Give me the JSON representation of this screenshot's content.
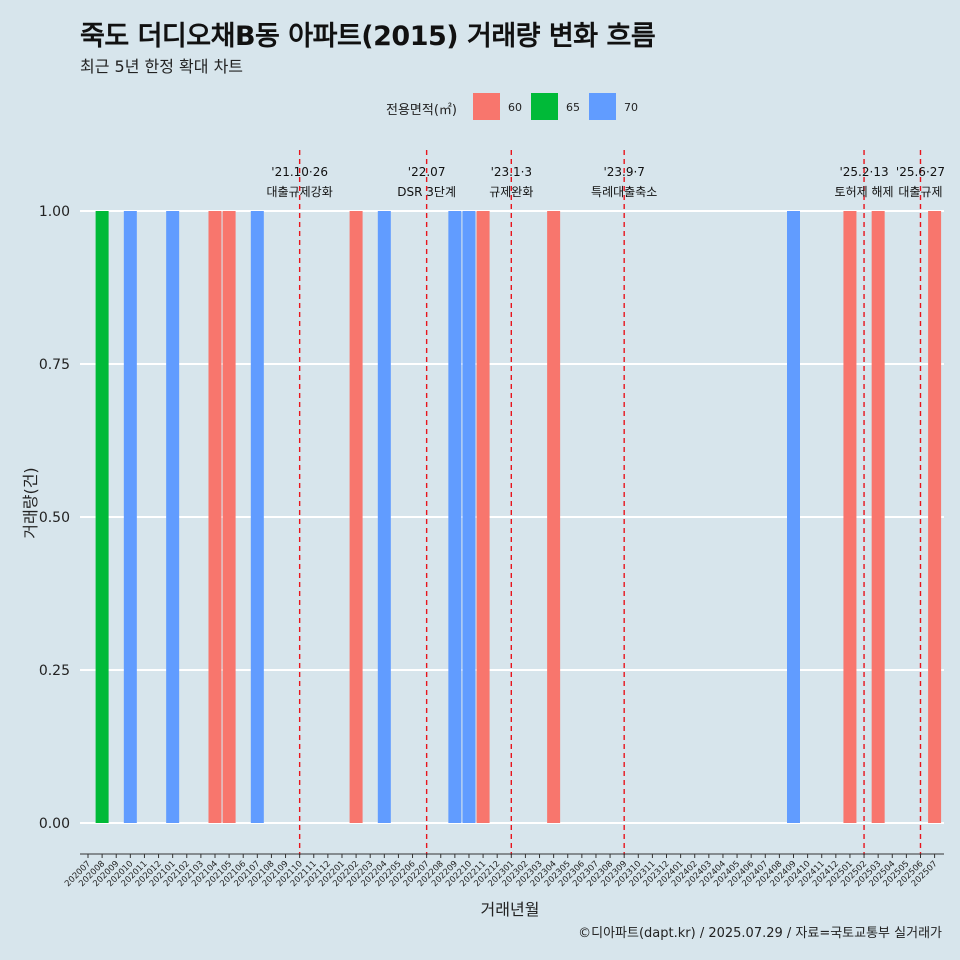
{
  "header": {
    "title": "죽도 더디오채B동 아파트(2015) 거래량 변화 흐름",
    "subtitle": "최근 5년 한정 확대 차트"
  },
  "legend": {
    "title": "전용면적(㎡)",
    "items": [
      {
        "label": "60",
        "color": "#f8766d"
      },
      {
        "label": "65",
        "color": "#00ba38"
      },
      {
        "label": "70",
        "color": "#619cff"
      }
    ]
  },
  "caption": "©디아파트(dapt.kr) / 2025.07.29 / 자료=국토교통부 실거래가",
  "chart_data": {
    "type": "bar",
    "title": "죽도 더디오채B동 아파트(2015) 거래량 변화 흐름",
    "subtitle": "최근 5년 한정 확대 차트",
    "xlabel": "거래년월",
    "ylabel": "거래량(건)",
    "ylim": [
      0,
      1
    ],
    "yticks": [
      0,
      0.25,
      0.5,
      0.75,
      1
    ],
    "ytick_labels": [
      "0.00",
      "0.25",
      "0.50",
      "0.75",
      "1.00"
    ],
    "grid": true,
    "legend_position": "top",
    "categories": [
      "202007",
      "202008",
      "202009",
      "202010",
      "202011",
      "202012",
      "202101",
      "202102",
      "202103",
      "202104",
      "202105",
      "202106",
      "202107",
      "202108",
      "202109",
      "202110",
      "202111",
      "202112",
      "202201",
      "202202",
      "202203",
      "202204",
      "202205",
      "202206",
      "202207",
      "202208",
      "202209",
      "202210",
      "202211",
      "202212",
      "202301",
      "202302",
      "202303",
      "202304",
      "202305",
      "202306",
      "202307",
      "202308",
      "202309",
      "202310",
      "202311",
      "202312",
      "202401",
      "202402",
      "202403",
      "202404",
      "202405",
      "202406",
      "202407",
      "202408",
      "202409",
      "202410",
      "202411",
      "202412",
      "202501",
      "202502",
      "202503",
      "202504",
      "202505",
      "202506",
      "202507"
    ],
    "bars": [
      {
        "month": "202008",
        "area": "65",
        "value": 1
      },
      {
        "month": "202010",
        "area": "70",
        "value": 1
      },
      {
        "month": "202101",
        "area": "70",
        "value": 1
      },
      {
        "month": "202104",
        "area": "60",
        "value": 1
      },
      {
        "month": "202105",
        "area": "60",
        "value": 1
      },
      {
        "month": "202107",
        "area": "70",
        "value": 1
      },
      {
        "month": "202202",
        "area": "60",
        "value": 1
      },
      {
        "month": "202204",
        "area": "70",
        "value": 1
      },
      {
        "month": "202209",
        "area": "70",
        "value": 1
      },
      {
        "month": "202210",
        "area": "70",
        "value": 1
      },
      {
        "month": "202211",
        "area": "60",
        "value": 1
      },
      {
        "month": "202304",
        "area": "60",
        "value": 1
      },
      {
        "month": "202409",
        "area": "70",
        "value": 1
      },
      {
        "month": "202501",
        "area": "60",
        "value": 1
      },
      {
        "month": "202503",
        "area": "60",
        "value": 1
      },
      {
        "month": "202507",
        "area": "60",
        "value": 1
      }
    ],
    "events": [
      {
        "month": "202110",
        "date": "'21.10·26",
        "label": "대출규제강화"
      },
      {
        "month": "202207",
        "date": "'22.07",
        "label": "DSR 3단계"
      },
      {
        "month": "202301",
        "date": "'23.1·3",
        "label": "규제완화"
      },
      {
        "month": "202309",
        "date": "'23.9·7",
        "label": "특례대출축소"
      },
      {
        "month": "202502",
        "date": "'25.2·13",
        "label": "토허제 해제"
      },
      {
        "month": "202506",
        "date": "'25.6·27",
        "label": "대출규제"
      }
    ]
  }
}
